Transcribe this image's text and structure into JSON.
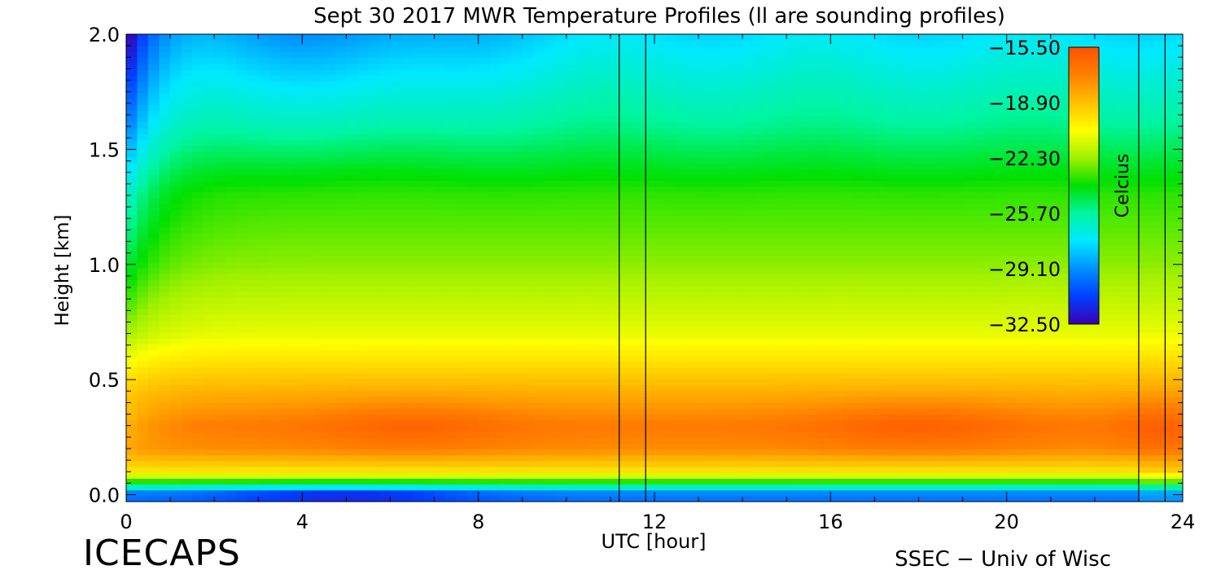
{
  "chart_data": {
    "type": "heatmap",
    "title": "Sept 30 2017 MWR Temperature Profiles (ll are sounding profiles)",
    "xlabel": "UTC [hour]",
    "ylabel": "Height [km]",
    "xlim": [
      0,
      24
    ],
    "ylim": [
      -0.03,
      2.0
    ],
    "x_ticks": [
      0,
      4,
      8,
      12,
      16,
      20,
      24
    ],
    "y_ticks": [
      0.0,
      0.5,
      1.0,
      1.5,
      2.0
    ],
    "x_tick_labels": [
      "0",
      "4",
      "8",
      "12",
      "16",
      "20",
      "24"
    ],
    "y_tick_labels": [
      "0.0",
      "0.5",
      "1.0",
      "1.5",
      "2.0"
    ],
    "sounding_lines_utc": [
      11.2,
      11.8,
      23.0,
      23.6
    ],
    "colorbar": {
      "label": "Celcius",
      "min": -32.5,
      "max": -15.5,
      "ticks": [
        -15.5,
        -18.9,
        -22.3,
        -25.7,
        -29.1,
        -32.5
      ],
      "tick_labels": [
        "−15.50",
        "−18.90",
        "−22.30",
        "−25.70",
        "−29.10",
        "−32.50"
      ],
      "colormap": [
        "#3a00b4",
        "#0040ff",
        "#0090ff",
        "#00e8ff",
        "#00f5a0",
        "#00e000",
        "#a0f000",
        "#ffff00",
        "#ffc000",
        "#ff8000",
        "#ff5000"
      ]
    },
    "approx_profile_celsius": {
      "heights_km": [
        0.0,
        0.05,
        0.1,
        0.2,
        0.3,
        0.5,
        0.7,
        1.0,
        1.3,
        1.6,
        1.8,
        2.0
      ],
      "typical_values": [
        -28,
        -24,
        -20,
        -17.5,
        -17,
        -19,
        -21,
        -22.5,
        -23.5,
        -25.5,
        -26.5,
        -27.5
      ]
    }
  },
  "footer": {
    "left_text": "ICECAPS",
    "right_text": "SSEC − Univ of Wisc"
  }
}
